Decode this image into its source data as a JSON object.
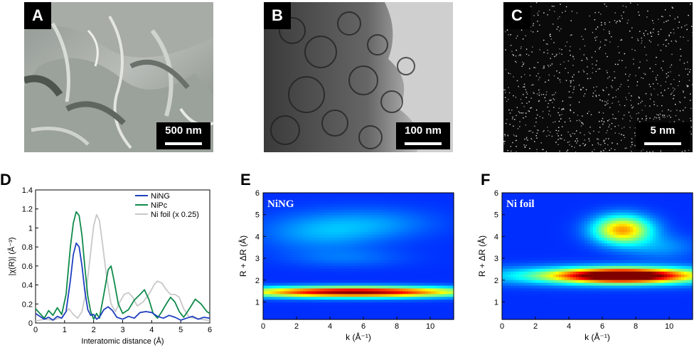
{
  "panels": {
    "A": {
      "letter": "A",
      "scale": "500 nm"
    },
    "B": {
      "letter": "B",
      "scale": "100 nm"
    },
    "C": {
      "letter": "C",
      "scale": "5 nm"
    },
    "D": {
      "letter": "D"
    },
    "E": {
      "letter": "E",
      "inset_label": "NiNG"
    },
    "F": {
      "letter": "F",
      "inset_label": "Ni foil"
    }
  },
  "chart_data": [
    {
      "type": "line",
      "panel": "D",
      "title": "",
      "xlabel": "Interatomic distance (Å)",
      "ylabel": "|χ(R)| (Å⁻³)",
      "xlim": [
        0,
        6
      ],
      "ylim": [
        0,
        1.4
      ],
      "xticks": [
        "0",
        "1",
        "2",
        "3",
        "4",
        "5",
        "6"
      ],
      "yticks": [
        "0",
        "0.2",
        "0.4",
        "0.6",
        "0.8",
        "1",
        "1.2",
        "1.4"
      ],
      "legend_position": "top-right",
      "series": [
        {
          "name": "NiNG",
          "color": "#1f3fbf",
          "x": [
            0,
            0.15,
            0.3,
            0.45,
            0.6,
            0.75,
            0.9,
            1.05,
            1.2,
            1.3,
            1.4,
            1.5,
            1.6,
            1.7,
            1.8,
            1.9,
            2.0,
            2.1,
            2.2,
            2.35,
            2.5,
            2.65,
            2.8,
            3.0,
            3.2,
            3.4,
            3.6,
            3.8,
            4.0,
            4.2,
            4.4,
            4.6,
            4.8,
            5.0,
            5.2,
            5.4,
            5.6,
            5.8,
            6.0
          ],
          "y": [
            0.1,
            0.07,
            0.04,
            0.06,
            0.03,
            0.07,
            0.05,
            0.12,
            0.45,
            0.72,
            0.84,
            0.8,
            0.6,
            0.33,
            0.14,
            0.08,
            0.09,
            0.04,
            0.06,
            0.14,
            0.17,
            0.13,
            0.06,
            0.04,
            0.07,
            0.05,
            0.11,
            0.12,
            0.11,
            0.07,
            0.05,
            0.08,
            0.06,
            0.03,
            0.05,
            0.07,
            0.04,
            0.06,
            0.05
          ]
        },
        {
          "name": "NiPc",
          "color": "#0f8a4a",
          "x": [
            0,
            0.15,
            0.3,
            0.45,
            0.6,
            0.75,
            0.9,
            1.05,
            1.2,
            1.3,
            1.4,
            1.5,
            1.6,
            1.7,
            1.8,
            1.9,
            2.0,
            2.1,
            2.2,
            2.35,
            2.5,
            2.6,
            2.7,
            2.85,
            3.0,
            3.2,
            3.4,
            3.6,
            3.75,
            3.9,
            4.05,
            4.2,
            4.35,
            4.5,
            4.65,
            4.8,
            4.95,
            5.1,
            5.3,
            5.5,
            5.7,
            5.9,
            6.0
          ],
          "y": [
            0.15,
            0.1,
            0.05,
            0.13,
            0.08,
            0.16,
            0.09,
            0.3,
            0.8,
            1.05,
            1.17,
            1.13,
            0.92,
            0.58,
            0.28,
            0.12,
            0.04,
            0.1,
            0.05,
            0.3,
            0.56,
            0.6,
            0.45,
            0.2,
            0.1,
            0.14,
            0.24,
            0.3,
            0.35,
            0.25,
            0.1,
            0.05,
            0.12,
            0.2,
            0.27,
            0.22,
            0.12,
            0.06,
            0.15,
            0.25,
            0.2,
            0.12,
            0.1
          ]
        },
        {
          "name": "Ni foil (x 0.25)",
          "color": "#c8c8c8",
          "x": [
            0,
            0.3,
            0.6,
            0.9,
            1.05,
            1.15,
            1.3,
            1.45,
            1.6,
            1.75,
            1.9,
            2.0,
            2.1,
            2.2,
            2.3,
            2.45,
            2.6,
            2.75,
            2.9,
            3.05,
            3.2,
            3.35,
            3.5,
            3.7,
            3.9,
            4.1,
            4.2,
            4.35,
            4.5,
            4.65,
            4.8,
            4.95,
            5.1,
            5.3,
            5.5,
            5.7,
            5.9,
            6.0
          ],
          "y": [
            0.02,
            0.04,
            0.03,
            0.06,
            0.12,
            0.15,
            0.09,
            0.05,
            0.12,
            0.35,
            0.75,
            1.02,
            1.14,
            1.08,
            0.85,
            0.48,
            0.2,
            0.12,
            0.22,
            0.3,
            0.32,
            0.27,
            0.18,
            0.22,
            0.3,
            0.41,
            0.44,
            0.42,
            0.35,
            0.3,
            0.3,
            0.27,
            0.15,
            0.06,
            0.05,
            0.04,
            0.03,
            0.02
          ]
        }
      ]
    },
    {
      "type": "heatmap",
      "panel": "E",
      "xlabel": "k (Å⁻¹)",
      "ylabel": "R + ΔR (Å)",
      "xlim": [
        0,
        11.4
      ],
      "ylim": [
        0.2,
        6
      ],
      "xticks": [
        "0",
        "2",
        "4",
        "6",
        "8",
        "10"
      ],
      "yticks": [
        "1",
        "2",
        "3",
        "4",
        "5",
        "6"
      ],
      "features": [
        {
          "k_center": 5.5,
          "R_center": 1.45,
          "intensity": 1.0
        },
        {
          "k_center": 4.0,
          "R_center": 4.3,
          "intensity": 0.2
        }
      ]
    },
    {
      "type": "heatmap",
      "panel": "F",
      "xlabel": "k (Å⁻¹)",
      "ylabel": "R + ΔR (Å)",
      "xlim": [
        0,
        11.4
      ],
      "ylim": [
        0.2,
        6
      ],
      "xticks": [
        "0",
        "2",
        "4",
        "6",
        "8",
        "10"
      ],
      "yticks": [
        "1",
        "2",
        "3",
        "4",
        "5",
        "6"
      ],
      "features": [
        {
          "k_center": 7.2,
          "R_center": 2.2,
          "intensity": 1.0
        },
        {
          "k_center": 7.2,
          "R_center": 4.3,
          "intensity": 0.7
        }
      ]
    }
  ]
}
